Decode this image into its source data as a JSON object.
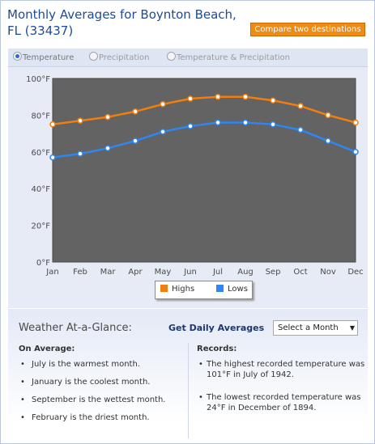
{
  "header": {
    "title": "Monthly Averages for Boynton Beach, FL (33437)",
    "compare_label": "Compare two destinations"
  },
  "tabs": [
    {
      "label": "Temperature",
      "selected": true
    },
    {
      "label": "Precipitation",
      "selected": false
    },
    {
      "label": "Temperature & Precipitation",
      "selected": false
    }
  ],
  "chart_data": {
    "type": "line",
    "x": [
      "Jan",
      "Feb",
      "Mar",
      "Apr",
      "May",
      "Jun",
      "Jul",
      "Aug",
      "Sep",
      "Oct",
      "Nov",
      "Dec"
    ],
    "y_ticks": [
      "0°F",
      "20°F",
      "40°F",
      "60°F",
      "80°F",
      "100°F"
    ],
    "ylim": [
      0,
      100
    ],
    "grid": false,
    "legend_position": "bottom-center",
    "series": [
      {
        "name": "Highs",
        "color": "#f07f10",
        "values": [
          75,
          77,
          79,
          82,
          86,
          89,
          90,
          90,
          88,
          85,
          80,
          76
        ]
      },
      {
        "name": "Lows",
        "color": "#2e86f0",
        "values": [
          57,
          59,
          62,
          66,
          71,
          74,
          76,
          76,
          75,
          72,
          66,
          60
        ]
      }
    ]
  },
  "glance": {
    "title": "Weather At-a-Glance:",
    "daily_label": "Get Daily Averages",
    "select_value": "Select a Month"
  },
  "on_average": {
    "heading": "On Average:",
    "items": [
      "July is the warmest month.",
      "January is the coolest month.",
      "September is the wettest month.",
      "February is the driest month."
    ]
  },
  "records": {
    "heading": "Records:",
    "items": [
      "The highest recorded temperature was 101°F in July of 1942.",
      "The lowest recorded temperature was 24°F in December of 1894."
    ]
  },
  "colors": {
    "title": "#1f4a96",
    "compare_button": "#ef8a12",
    "plot_background": "#636363",
    "highs": "#f07f10",
    "lows": "#2e86f0"
  }
}
